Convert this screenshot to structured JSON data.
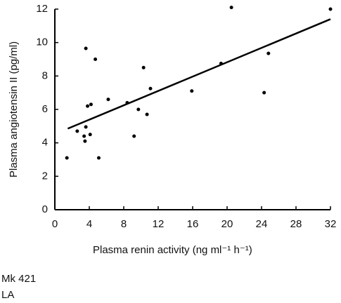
{
  "chart_data": {
    "type": "scatter",
    "x_label": "Plasma renin activity (ng ml⁻¹ h⁻¹)",
    "y_label": "Plasma angiotensin II (pg/ml)",
    "x": [
      1.4,
      2.6,
      3.4,
      3.5,
      3.6,
      3.6,
      3.8,
      4.1,
      4.2,
      4.7,
      5.1,
      6.2,
      8.4,
      9.2,
      9.7,
      10.3,
      10.7,
      11.1,
      15.9,
      19.3,
      20.5,
      24.3,
      24.8,
      32
    ],
    "values": [
      3.1,
      4.7,
      4.4,
      4.1,
      4.95,
      9.65,
      6.2,
      4.5,
      6.3,
      9.0,
      3.1,
      6.6,
      6.4,
      4.4,
      6.0,
      8.5,
      5.7,
      7.25,
      7.1,
      8.75,
      12.1,
      7.0,
      9.35,
      12.0
    ],
    "color": "#000000",
    "fit_line": {
      "x": [
        1.5,
        32
      ],
      "y": [
        4.85,
        11.4
      ]
    },
    "xlim": [
      0,
      32
    ],
    "xticks": [
      0,
      4,
      8,
      12,
      16,
      20,
      24,
      28,
      32
    ],
    "ylim": [
      0,
      12
    ],
    "yticks": [
      0,
      2,
      4,
      6,
      8,
      10,
      12
    ],
    "annotations": [
      "Mk 421",
      "LA"
    ]
  }
}
